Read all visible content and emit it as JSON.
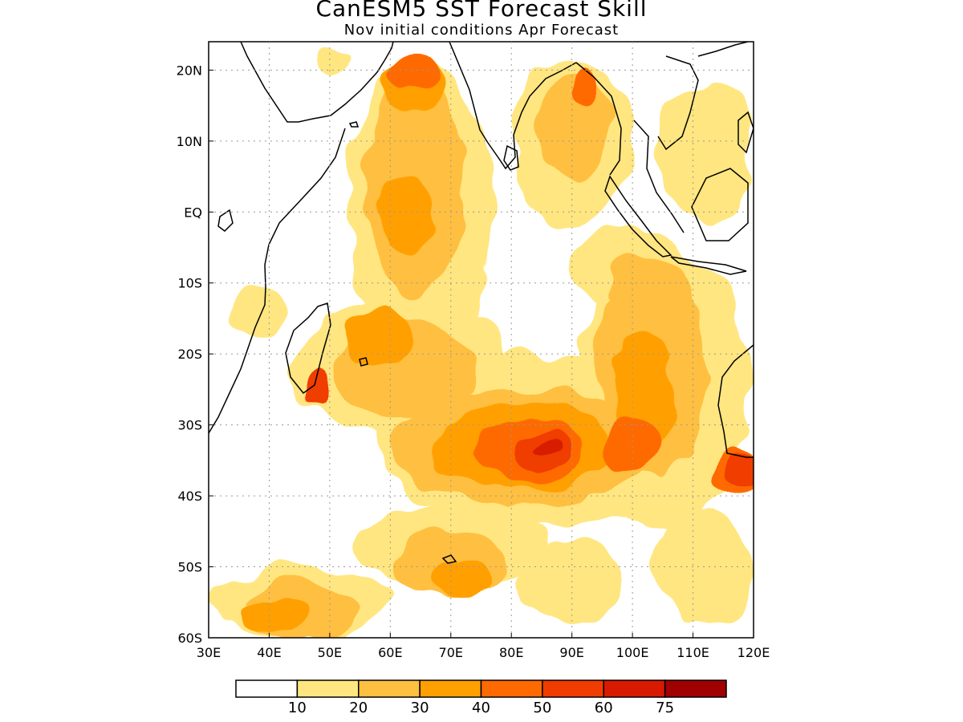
{
  "header": {
    "title": "CanESM5 SST Forecast Skill",
    "subtitle": "Nov initial conditions  Apr Forecast"
  },
  "chart_data": {
    "type": "heatmap",
    "title": "CanESM5 SST Forecast Skill",
    "subtitle": "Nov initial conditions  Apr Forecast",
    "region": "Indian Ocean",
    "xlim": [
      30,
      120
    ],
    "ylim": [
      -60,
      24
    ],
    "x_ticks": [
      "30E",
      "40E",
      "50E",
      "60E",
      "70E",
      "80E",
      "90E",
      "100E",
      "110E",
      "120E"
    ],
    "y_ticks": [
      "20N",
      "10N",
      "EQ",
      "10S",
      "20S",
      "30S",
      "40S",
      "50S",
      "60S"
    ],
    "grid": true,
    "colorbar": {
      "levels": [
        "10",
        "20",
        "30",
        "40",
        "50",
        "60",
        "75"
      ],
      "colors": [
        "#ffffff",
        "#ffe680",
        "#ffbf40",
        "#ffa000",
        "#ff6a00",
        "#f03c00",
        "#d81a00",
        "#a00000"
      ]
    },
    "skill_regions": [
      {
        "level": 1,
        "lon": 38,
        "lat": -14,
        "rx": 4,
        "ry": 4
      },
      {
        "level": 1,
        "lon": 50,
        "lat": 22,
        "rx": 3,
        "ry": 2
      },
      {
        "level": 1,
        "lon": 65,
        "lat": 0,
        "rx": 12,
        "ry": 22
      },
      {
        "level": 1,
        "lon": 62,
        "lat": -22,
        "rx": 18,
        "ry": 10
      },
      {
        "level": 1,
        "lon": 85,
        "lat": -32,
        "rx": 28,
        "ry": 12
      },
      {
        "level": 1,
        "lon": 105,
        "lat": -25,
        "rx": 14,
        "ry": 20
      },
      {
        "level": 1,
        "lon": 90,
        "lat": 10,
        "rx": 10,
        "ry": 12
      },
      {
        "level": 1,
        "lon": 112,
        "lat": 8,
        "rx": 8,
        "ry": 10
      },
      {
        "level": 1,
        "lon": 70,
        "lat": -47,
        "rx": 16,
        "ry": 6
      },
      {
        "level": 1,
        "lon": 45,
        "lat": -55,
        "rx": 15,
        "ry": 5
      },
      {
        "level": 1,
        "lon": 90,
        "lat": -52,
        "rx": 8,
        "ry": 6
      },
      {
        "level": 1,
        "lon": 112,
        "lat": -50,
        "rx": 8,
        "ry": 8
      },
      {
        "level": 1,
        "lon": 100,
        "lat": -8,
        "rx": 10,
        "ry": 6
      },
      {
        "level": 2,
        "lon": 64,
        "lat": 4,
        "rx": 8,
        "ry": 16
      },
      {
        "level": 2,
        "lon": 62,
        "lat": -22,
        "rx": 12,
        "ry": 7
      },
      {
        "level": 2,
        "lon": 82,
        "lat": -33,
        "rx": 22,
        "ry": 8
      },
      {
        "level": 2,
        "lon": 103,
        "lat": -22,
        "rx": 9,
        "ry": 16
      },
      {
        "level": 2,
        "lon": 90,
        "lat": 12,
        "rx": 6,
        "ry": 8
      },
      {
        "level": 2,
        "lon": 70,
        "lat": -50,
        "rx": 10,
        "ry": 5
      },
      {
        "level": 2,
        "lon": 45,
        "lat": -56,
        "rx": 10,
        "ry": 4
      },
      {
        "level": 2,
        "lon": 102,
        "lat": -10,
        "rx": 7,
        "ry": 4
      },
      {
        "level": 3,
        "lon": 63,
        "lat": 0,
        "rx": 5,
        "ry": 5
      },
      {
        "level": 3,
        "lon": 64,
        "lat": 18,
        "rx": 5,
        "ry": 5
      },
      {
        "level": 3,
        "lon": 82,
        "lat": -33,
        "rx": 15,
        "ry": 6
      },
      {
        "level": 3,
        "lon": 102,
        "lat": -25,
        "rx": 5,
        "ry": 8
      },
      {
        "level": 3,
        "lon": 58,
        "lat": -18,
        "rx": 6,
        "ry": 4
      },
      {
        "level": 3,
        "lon": 72,
        "lat": -52,
        "rx": 5,
        "ry": 3
      },
      {
        "level": 3,
        "lon": 40,
        "lat": -57,
        "rx": 6,
        "ry": 2
      },
      {
        "level": 4,
        "lon": 64,
        "lat": 20,
        "rx": 4,
        "ry": 3
      },
      {
        "level": 4,
        "lon": 83,
        "lat": -34,
        "rx": 9,
        "ry": 4
      },
      {
        "level": 4,
        "lon": 100,
        "lat": -33,
        "rx": 4,
        "ry": 4
      },
      {
        "level": 4,
        "lon": 117,
        "lat": -37,
        "rx": 4,
        "ry": 3
      },
      {
        "level": 4,
        "lon": 92,
        "lat": 18,
        "rx": 2,
        "ry": 3
      },
      {
        "level": 5,
        "lon": 85,
        "lat": -34,
        "rx": 5,
        "ry": 2.5
      },
      {
        "level": 5,
        "lon": 48,
        "lat": -25,
        "rx": 1.5,
        "ry": 2.5
      },
      {
        "level": 5,
        "lon": 118,
        "lat": -37,
        "rx": 3,
        "ry": 2
      },
      {
        "level": 6,
        "lon": 86,
        "lat": -34,
        "rx": 2,
        "ry": 1.2
      }
    ]
  }
}
